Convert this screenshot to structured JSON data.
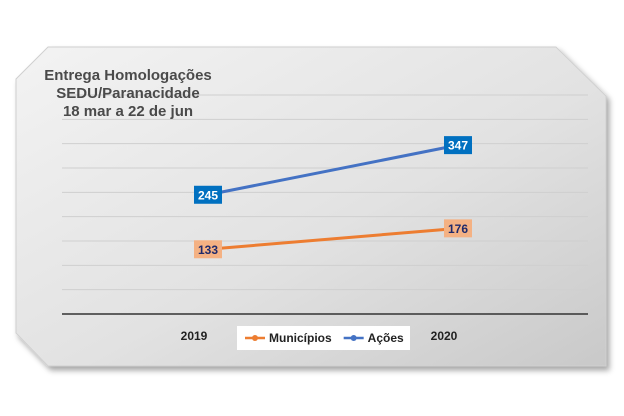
{
  "chart_data": {
    "type": "line",
    "title_lines": [
      "Entrega Homologações",
      "SEDU/Paranacidade",
      "18 mar a 22 de jun"
    ],
    "categories": [
      "2019",
      "2020"
    ],
    "series": [
      {
        "name": "Municípios",
        "values": [
          133,
          176
        ],
        "color": "#ed7d31",
        "label_bg": "#f4b183",
        "label_text_color": "#1f2a6b"
      },
      {
        "name": "Ações",
        "values": [
          245,
          347
        ],
        "color": "#4472c4",
        "label_bg": "#0070c0",
        "label_text_color": "#ffffff"
      }
    ],
    "ylim": [
      0,
      450
    ],
    "grid": true,
    "legend": "bottom-center",
    "xlabel": "",
    "ylabel": ""
  }
}
